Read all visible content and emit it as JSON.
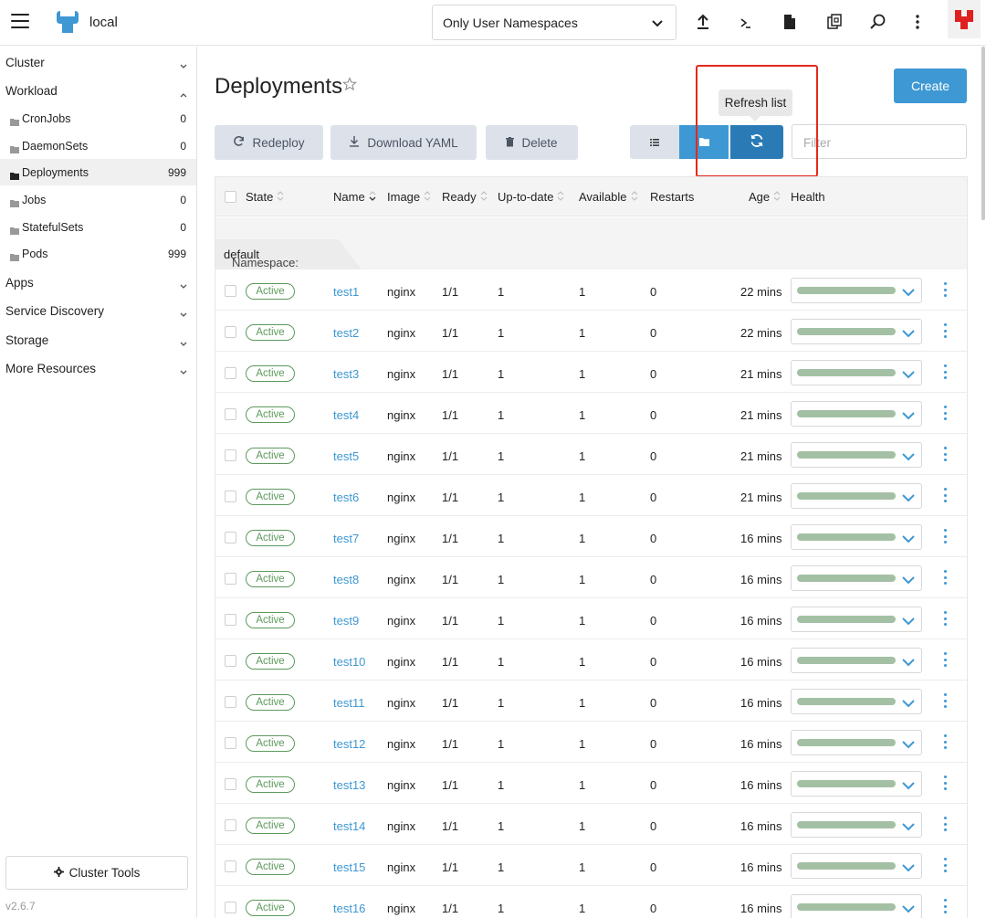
{
  "header": {
    "cluster_name": "local",
    "namespace_select": "Only User Namespaces",
    "icons": [
      "menu-icon",
      "import-yaml-icon",
      "kubectl-shell-icon",
      "kubeconfig-file-icon",
      "copy-kubeconfig-icon",
      "search-icon",
      "more-vertical-icon"
    ]
  },
  "sidebar": {
    "groups": {
      "cluster": "Cluster",
      "workload": "Workload",
      "apps": "Apps",
      "service_discovery": "Service Discovery",
      "storage": "Storage",
      "more_resources": "More Resources"
    },
    "items": [
      {
        "label": "CronJobs",
        "count": "0"
      },
      {
        "label": "DaemonSets",
        "count": "0"
      },
      {
        "label": "Deployments",
        "count": "999"
      },
      {
        "label": "Jobs",
        "count": "0"
      },
      {
        "label": "StatefulSets",
        "count": "0"
      },
      {
        "label": "Pods",
        "count": "999"
      }
    ],
    "active_item": "Deployments",
    "cluster_tools": "Cluster Tools",
    "version": "v2.6.7"
  },
  "main": {
    "title": "Deployments",
    "create_label": "Create",
    "tooltip": "Refresh list",
    "actions": {
      "redeploy": "Redeploy",
      "download_yaml": "Download YAML",
      "delete": "Delete"
    },
    "filter_placeholder": "Filter"
  },
  "table": {
    "headers": {
      "state": "State",
      "name": "Name",
      "image": "Image",
      "ready": "Ready",
      "up_to_date": "Up-to-date",
      "available": "Available",
      "restarts": "Restarts",
      "age": "Age",
      "health": "Health"
    },
    "group_prefix": "Namespace: ",
    "group_name": "default",
    "rows": [
      {
        "state": "Active",
        "name": "test1",
        "image": "nginx",
        "ready": "1/1",
        "up_to_date": "1",
        "available": "1",
        "restarts": "0",
        "age": "22 mins"
      },
      {
        "state": "Active",
        "name": "test2",
        "image": "nginx",
        "ready": "1/1",
        "up_to_date": "1",
        "available": "1",
        "restarts": "0",
        "age": "22 mins"
      },
      {
        "state": "Active",
        "name": "test3",
        "image": "nginx",
        "ready": "1/1",
        "up_to_date": "1",
        "available": "1",
        "restarts": "0",
        "age": "21 mins"
      },
      {
        "state": "Active",
        "name": "test4",
        "image": "nginx",
        "ready": "1/1",
        "up_to_date": "1",
        "available": "1",
        "restarts": "0",
        "age": "21 mins"
      },
      {
        "state": "Active",
        "name": "test5",
        "image": "nginx",
        "ready": "1/1",
        "up_to_date": "1",
        "available": "1",
        "restarts": "0",
        "age": "21 mins"
      },
      {
        "state": "Active",
        "name": "test6",
        "image": "nginx",
        "ready": "1/1",
        "up_to_date": "1",
        "available": "1",
        "restarts": "0",
        "age": "21 mins"
      },
      {
        "state": "Active",
        "name": "test7",
        "image": "nginx",
        "ready": "1/1",
        "up_to_date": "1",
        "available": "1",
        "restarts": "0",
        "age": "16 mins"
      },
      {
        "state": "Active",
        "name": "test8",
        "image": "nginx",
        "ready": "1/1",
        "up_to_date": "1",
        "available": "1",
        "restarts": "0",
        "age": "16 mins"
      },
      {
        "state": "Active",
        "name": "test9",
        "image": "nginx",
        "ready": "1/1",
        "up_to_date": "1",
        "available": "1",
        "restarts": "0",
        "age": "16 mins"
      },
      {
        "state": "Active",
        "name": "test10",
        "image": "nginx",
        "ready": "1/1",
        "up_to_date": "1",
        "available": "1",
        "restarts": "0",
        "age": "16 mins"
      },
      {
        "state": "Active",
        "name": "test11",
        "image": "nginx",
        "ready": "1/1",
        "up_to_date": "1",
        "available": "1",
        "restarts": "0",
        "age": "16 mins"
      },
      {
        "state": "Active",
        "name": "test12",
        "image": "nginx",
        "ready": "1/1",
        "up_to_date": "1",
        "available": "1",
        "restarts": "0",
        "age": "16 mins"
      },
      {
        "state": "Active",
        "name": "test13",
        "image": "nginx",
        "ready": "1/1",
        "up_to_date": "1",
        "available": "1",
        "restarts": "0",
        "age": "16 mins"
      },
      {
        "state": "Active",
        "name": "test14",
        "image": "nginx",
        "ready": "1/1",
        "up_to_date": "1",
        "available": "1",
        "restarts": "0",
        "age": "16 mins"
      },
      {
        "state": "Active",
        "name": "test15",
        "image": "nginx",
        "ready": "1/1",
        "up_to_date": "1",
        "available": "1",
        "restarts": "0",
        "age": "16 mins"
      },
      {
        "state": "Active",
        "name": "test16",
        "image": "nginx",
        "ready": "1/1",
        "up_to_date": "1",
        "available": "1",
        "restarts": "0",
        "age": "16 mins"
      }
    ]
  },
  "colors": {
    "primary": "#3d98d3",
    "primary_dark": "#2a7bb5",
    "active_state": "#5d995d",
    "health_bar": "#a4c0a4",
    "highlight_box": "#e4291d"
  }
}
